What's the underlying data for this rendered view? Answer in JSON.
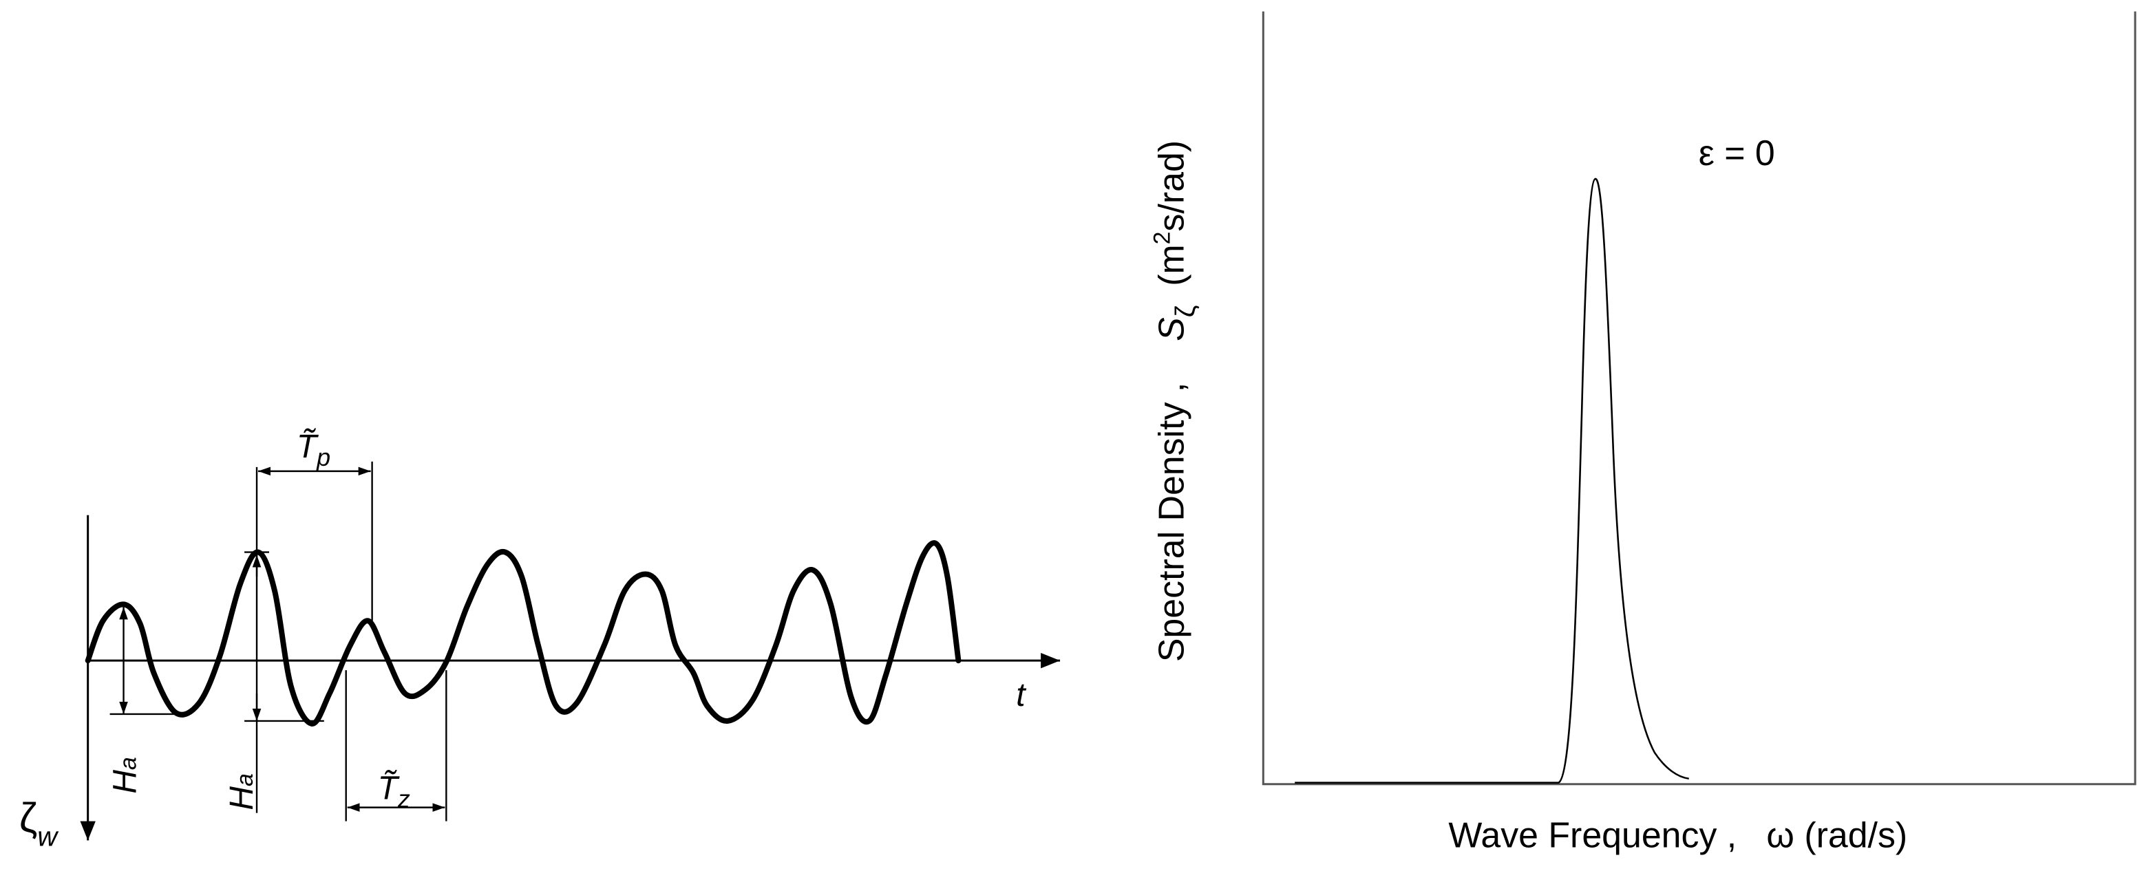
{
  "wave_record": {
    "period_peak": {
      "symbol": "T̃",
      "subscript": "p"
    },
    "period_zero": {
      "symbol": "T̃",
      "subscript": "z"
    },
    "amplitude_1": {
      "symbol": "H",
      "subscript": "a"
    },
    "amplitude_2": {
      "symbol": "H",
      "subscript": "a"
    },
    "time_axis": "t",
    "elevation_axis": {
      "symbol": "ζ",
      "subscript": "w"
    }
  },
  "spectrum": {
    "y_label": {
      "text": "Spectral Density ,",
      "symbol": "S",
      "subscript": "ζ",
      "unit_before": "(m",
      "unit_power": "2",
      "unit_after": "s/rad)"
    },
    "annotation": "ε = 0",
    "x_label": "Wave Frequency ,   ω (rad/s)"
  }
}
